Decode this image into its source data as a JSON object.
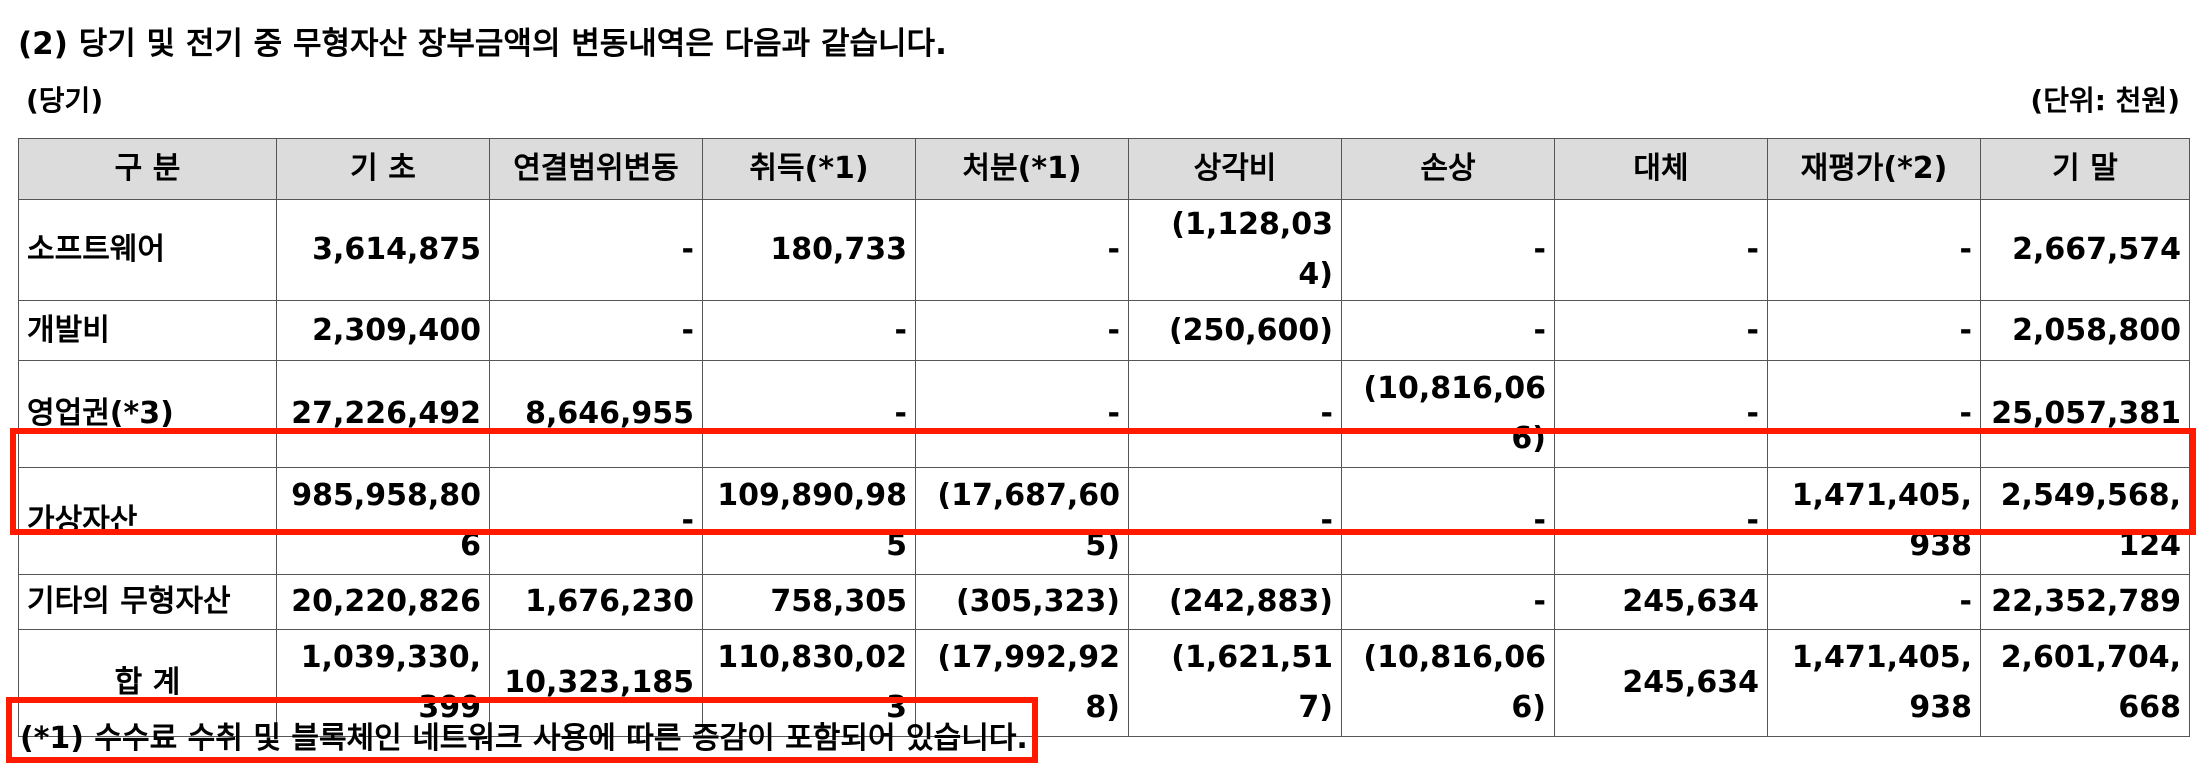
{
  "heading": "(2) 당기 및 전기 중 무형자산 장부금액의 변동내역은 다음과 같습니다.",
  "period_label": "(당기)",
  "unit_label": "(단위: 천원)",
  "table": {
    "headers": [
      "구  분",
      "기 초",
      "연결범위변동",
      "취득(*1)",
      "처분(*1)",
      "상각비",
      "손상",
      "대체",
      "재평가(*2)",
      "기 말"
    ],
    "rows": [
      [
        "소프트웨어",
        "3,614,875",
        "-",
        "180,733",
        "-",
        "(1,128,034)",
        "-",
        "-",
        "-",
        "2,667,574"
      ],
      [
        "개발비",
        "2,309,400",
        "-",
        "-",
        "-",
        "(250,600)",
        "-",
        "-",
        "-",
        "2,058,800"
      ],
      [
        "영업권(*3)",
        "27,226,492",
        "8,646,955",
        "-",
        "-",
        "-",
        "(10,816,066)",
        "-",
        "-",
        "25,057,381"
      ],
      [
        "가상자산",
        "985,958,806",
        "-",
        "109,890,985",
        "(17,687,605)",
        "-",
        "-",
        "-",
        "1,471,405,938",
        "2,549,568,124"
      ],
      [
        "기타의 무형자산",
        "20,220,826",
        "1,676,230",
        "758,305",
        "(305,323)",
        "(242,883)",
        "-",
        "245,634",
        "-",
        "22,352,789"
      ],
      [
        "합  계",
        "1,039,330,399",
        "10,323,185",
        "110,830,023",
        "(17,992,928)",
        "(1,621,517)",
        "(10,816,066)",
        "245,634",
        "1,471,405,938",
        "2,601,704,668"
      ]
    ]
  },
  "footnote": "(*1) 수수료 수취 및 블록체인 네트워크 사용에 따른 증감이 포함되어 있습니다.",
  "colors": {
    "highlight": "#ff1a00",
    "header_bg": "#dcdcdc"
  }
}
